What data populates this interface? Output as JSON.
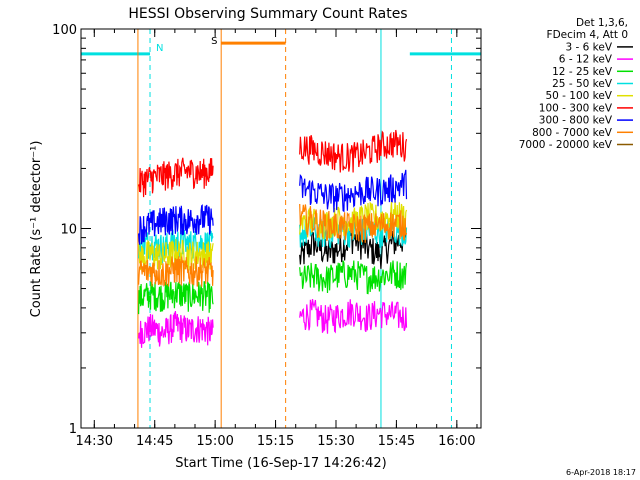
{
  "chart_data": {
    "type": "line",
    "title": "HESSI Observing Summary Count Rates",
    "xlabel": "Start Time (16-Sep-17 14:26:42)",
    "ylabel": "Count Rate (s⁻¹ detector⁻¹)",
    "yscale": "log",
    "xlim": [
      "14:26:42",
      "16:06:00"
    ],
    "ylim": [
      1,
      100
    ],
    "xticks": [
      "14:30",
      "14:45",
      "15:00",
      "15:15",
      "15:30",
      "15:45",
      "16:00"
    ],
    "yticks": [
      "1",
      "10",
      "100"
    ],
    "grid": false,
    "legend_position": "top-right",
    "legend_header": [
      "Det 1,3,6,",
      "FDecim 4, Att 0"
    ],
    "footer": "6-Apr-2018 18:17",
    "series": [
      {
        "name": "3 - 6 keV",
        "color": "#000000",
        "segments": [
          {
            "start": "15:21:00",
            "end": "15:47:30",
            "values": [
              7.0,
              8.5,
              7.5,
              8.0,
              9.0,
              8.0,
              7.5,
              8.5,
              9.0
            ]
          }
        ]
      },
      {
        "name": "6 - 12 keV",
        "color": "#ff00ff",
        "segments": [
          {
            "start": "14:41:00",
            "end": "14:59:30",
            "values": [
              3.0,
              3.2,
              3.0,
              3.3,
              3.1,
              3.2,
              3.0
            ]
          },
          {
            "start": "15:21:00",
            "end": "15:47:30",
            "values": [
              3.6,
              3.8,
              3.5,
              3.7,
              3.9,
              3.6,
              3.8,
              3.7,
              3.6
            ]
          }
        ]
      },
      {
        "name": "12 - 25 keV",
        "color": "#00e000",
        "segments": [
          {
            "start": "14:41:00",
            "end": "14:59:30",
            "values": [
              4.5,
              4.7,
              4.6,
              4.8,
              4.6,
              4.7,
              4.5
            ]
          },
          {
            "start": "15:21:00",
            "end": "15:47:30",
            "values": [
              5.5,
              5.8,
              5.6,
              5.9,
              6.0,
              5.7,
              5.8,
              6.0,
              5.9
            ]
          }
        ]
      },
      {
        "name": "25 - 50 keV",
        "color": "#00e0e0",
        "segments": [
          {
            "start": "14:41:00",
            "end": "14:59:30",
            "values": [
              8.2,
              8.5,
              8.0,
              8.6,
              8.4,
              8.5,
              8.3
            ]
          },
          {
            "start": "15:21:00",
            "end": "15:47:30",
            "values": [
              9.5,
              9.8,
              9.4,
              9.9,
              9.6,
              9.8,
              9.7,
              10.0,
              9.8
            ]
          }
        ]
      },
      {
        "name": "50 - 100 keV",
        "color": "#e0e000",
        "segments": [
          {
            "start": "14:41:00",
            "end": "14:59:30",
            "values": [
              7.2,
              7.5,
              7.3,
              7.6,
              7.4,
              7.5,
              7.3
            ]
          },
          {
            "start": "15:21:00",
            "end": "15:47:30",
            "values": [
              10.5,
              11.0,
              10.6,
              11.2,
              10.8,
              11.5,
              11.3,
              11.8,
              11.6
            ]
          }
        ]
      },
      {
        "name": "100 - 300 keV",
        "color": "#ff0000",
        "segments": [
          {
            "start": "14:41:00",
            "end": "14:59:30",
            "values": [
              17.0,
              18.0,
              18.5,
              19.0,
              19.5,
              19.0,
              19.5
            ]
          },
          {
            "start": "15:21:00",
            "end": "15:47:30",
            "values": [
              26.0,
              25.0,
              24.0,
              23.0,
              23.0,
              24.0,
              26.0,
              27.0,
              26.0
            ]
          }
        ]
      },
      {
        "name": "300 - 800 keV",
        "color": "#0000ff",
        "segments": [
          {
            "start": "14:41:00",
            "end": "14:59:30",
            "values": [
              10.0,
              10.5,
              11.0,
              11.2,
              11.0,
              11.3,
              11.2
            ]
          },
          {
            "start": "15:21:00",
            "end": "15:47:30",
            "values": [
              16.0,
              15.5,
              14.5,
              14.5,
              15.0,
              15.5,
              15.5,
              16.0,
              17.0
            ]
          }
        ]
      },
      {
        "name": "800 - 7000 keV",
        "color": "#ff8000",
        "segments": [
          {
            "start": "14:41:00",
            "end": "14:59:30",
            "values": [
              6.0,
              6.2,
              6.0,
              6.3,
              6.1,
              6.2,
              6.1
            ]
          },
          {
            "start": "15:21:00",
            "end": "15:47:30",
            "values": [
              11.5,
              11.0,
              10.5,
              10.3,
              10.2,
              10.2,
              10.4,
              10.6,
              10.5
            ]
          }
        ]
      },
      {
        "name": "7000 - 20000 keV",
        "color": "#8b5a00",
        "segments": []
      }
    ],
    "annotations": {
      "attenuator_label": "S",
      "night_label": "N",
      "markers": [
        {
          "kind": "cyan-bar",
          "start": "14:26:42",
          "end": "14:43:50",
          "y": 75
        },
        {
          "kind": "cyan-bar",
          "start": "15:48:20",
          "end": "16:06:00",
          "y": 75
        },
        {
          "kind": "orange-bar",
          "start": "15:01:30",
          "end": "15:17:30",
          "y": 85
        },
        {
          "kind": "cyan-solid-line",
          "at": "14:26:42"
        },
        {
          "kind": "cyan-dashed-line",
          "at": "14:43:50"
        },
        {
          "kind": "orange-solid-line",
          "at": "14:40:50"
        },
        {
          "kind": "orange-solid-line",
          "at": "15:01:30"
        },
        {
          "kind": "orange-dashed-line",
          "at": "15:17:30"
        },
        {
          "kind": "cyan-solid-line",
          "at": "15:41:10"
        },
        {
          "kind": "cyan-dashed-line",
          "at": "15:58:40"
        }
      ]
    }
  }
}
